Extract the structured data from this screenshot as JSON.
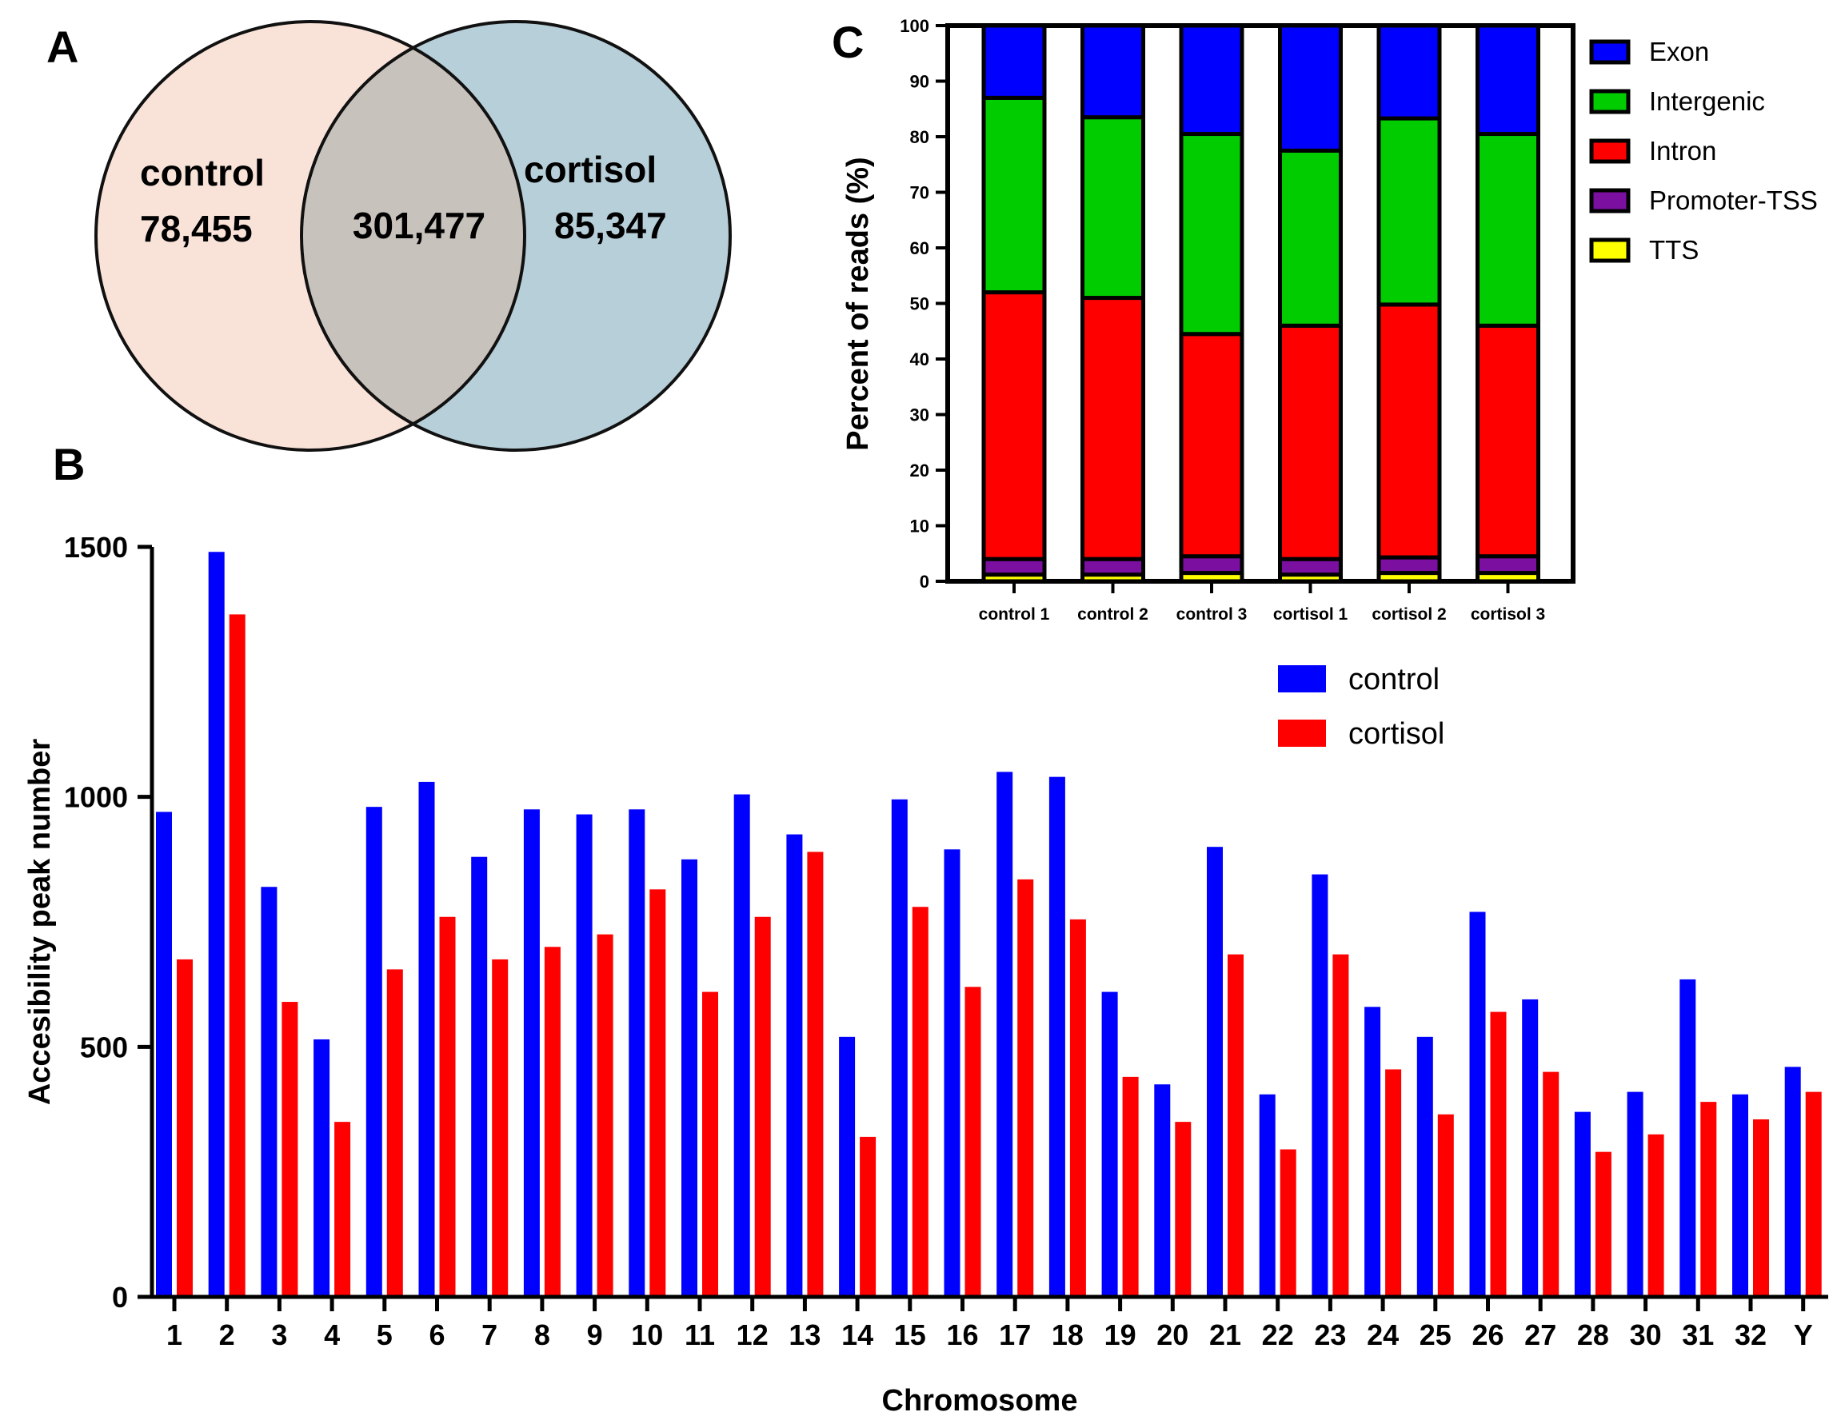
{
  "panels": {
    "a_letter": "A",
    "b_letter": "B",
    "c_letter": "C"
  },
  "venn": {
    "left": {
      "name": "control",
      "count": "78,455",
      "color": "#f9e3d9"
    },
    "right": {
      "name": "cortisol",
      "count": "85,347",
      "color": "#b7cfd9"
    },
    "overlap": {
      "count": "301,477",
      "color": "#c8c2bc"
    }
  },
  "chart_data": [
    {
      "type": "bar",
      "panel": "B",
      "xlabel": "Chromosome",
      "ylabel": "Accesibility peak number",
      "ylim": [
        0,
        1500
      ],
      "yticks": [
        0,
        500,
        1000,
        1500
      ],
      "legend_position": "upper-right",
      "categories": [
        "1",
        "2",
        "3",
        "4",
        "5",
        "6",
        "7",
        "8",
        "9",
        "10",
        "11",
        "12",
        "13",
        "14",
        "15",
        "16",
        "17",
        "18",
        "19",
        "20",
        "21",
        "22",
        "23",
        "24",
        "25",
        "26",
        "27",
        "28",
        "30",
        "31",
        "32",
        "Y"
      ],
      "series": [
        {
          "name": "control",
          "color": "#0000ff",
          "values": [
            970,
            1490,
            820,
            515,
            980,
            1030,
            880,
            975,
            965,
            975,
            875,
            1005,
            925,
            520,
            995,
            895,
            1050,
            1040,
            610,
            425,
            900,
            405,
            845,
            580,
            520,
            770,
            595,
            370,
            410,
            635,
            405,
            460
          ]
        },
        {
          "name": "cortisol",
          "color": "#ff0000",
          "values": [
            675,
            1365,
            590,
            350,
            655,
            760,
            675,
            700,
            725,
            815,
            610,
            760,
            890,
            320,
            780,
            620,
            835,
            755,
            440,
            350,
            685,
            295,
            685,
            455,
            365,
            570,
            450,
            290,
            325,
            390,
            355,
            410
          ]
        }
      ]
    },
    {
      "type": "bar",
      "stacked": true,
      "panel": "C",
      "ylabel": "Percent of reads (%)",
      "ylim": [
        0,
        100
      ],
      "yticks": [
        0,
        10,
        20,
        30,
        40,
        50,
        60,
        70,
        80,
        90,
        100
      ],
      "legend_position": "right",
      "categories": [
        "control 1",
        "control 2",
        "control 3",
        "cortisol 1",
        "cortisol 2",
        "cortisol 3"
      ],
      "series": [
        {
          "name": "TTS",
          "color": "#ffff00",
          "values": [
            1.2,
            1.2,
            1.5,
            1.2,
            1.5,
            1.5
          ]
        },
        {
          "name": "Promoter-TSS",
          "color": "#7b0fa0",
          "values": [
            2.8,
            2.8,
            3.0,
            2.8,
            2.8,
            3.0
          ]
        },
        {
          "name": "Intron",
          "color": "#ff0000",
          "values": [
            48.0,
            47.0,
            40.0,
            42.0,
            45.5,
            41.5
          ]
        },
        {
          "name": "Intergenic",
          "color": "#00cc00",
          "values": [
            35.0,
            32.5,
            36.0,
            31.5,
            33.5,
            34.5
          ]
        },
        {
          "name": "Exon",
          "color": "#0000ff",
          "values": [
            13.0,
            16.5,
            19.5,
            22.5,
            16.7,
            19.5
          ]
        }
      ],
      "legend_order": [
        "Exon",
        "Intergenic",
        "Intron",
        "Promoter-TSS",
        "TTS"
      ]
    }
  ]
}
